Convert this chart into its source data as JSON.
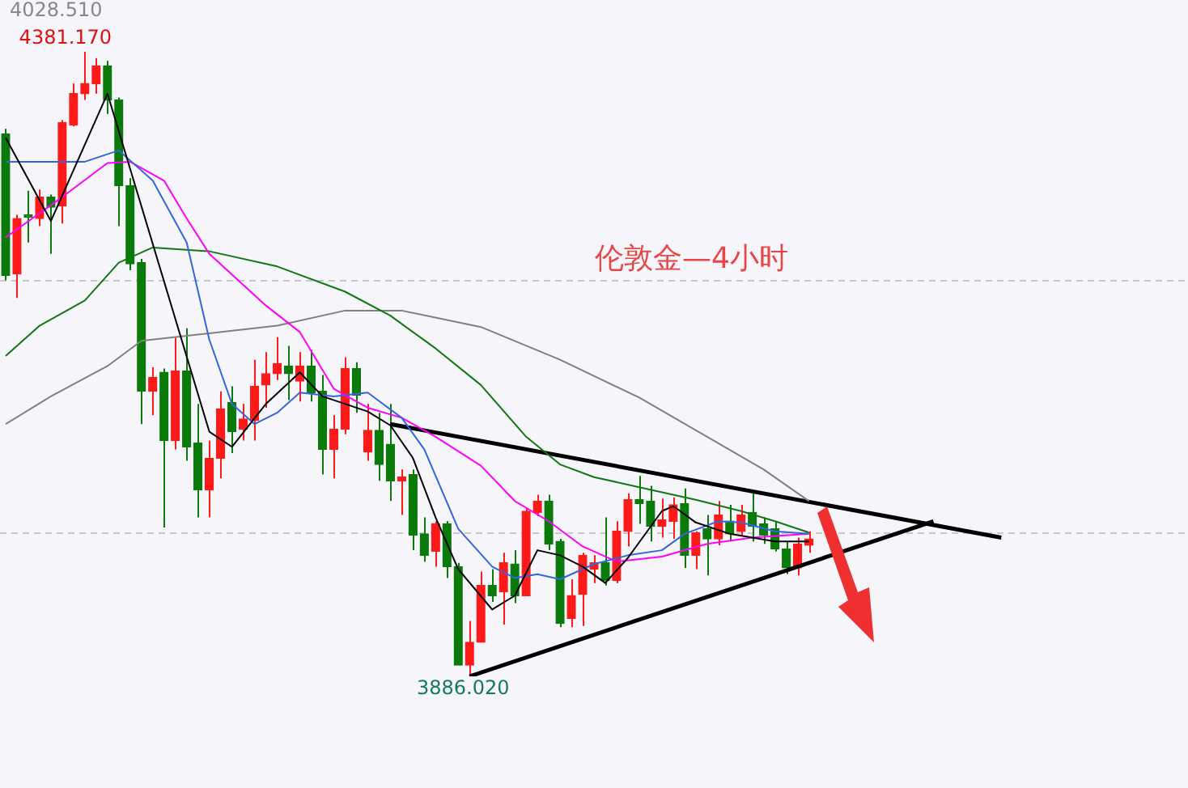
{
  "chart_data": {
    "type": "candlestick",
    "title": "伦敦金—4小时",
    "annotations": [
      "4028.510",
      "4381.170",
      "3886.020"
    ],
    "categories": [
      null,
      null,
      null,
      null,
      null,
      null,
      null,
      null,
      null,
      null,
      null,
      null,
      null,
      null,
      null,
      null,
      null,
      null,
      null,
      null,
      null,
      null,
      null,
      null,
      null,
      null,
      null,
      null,
      null,
      null,
      null,
      null,
      null,
      null,
      null,
      null,
      null,
      null,
      null,
      null,
      null,
      null,
      null,
      null,
      null,
      null,
      null,
      null,
      null,
      null,
      null,
      null,
      null,
      null,
      null,
      null,
      null,
      null,
      null,
      null,
      null,
      null,
      null,
      null,
      null,
      null,
      null,
      null,
      null,
      null,
      null,
      null,
      null,
      null,
      null,
      null,
      null,
      null,
      null,
      null,
      null,
      null,
      null,
      null,
      null,
      null,
      null,
      null,
      null,
      null,
      null,
      null,
      null,
      null,
      null,
      null,
      null,
      null,
      null,
      null,
      null,
      null,
      null,
      null,
      null
    ],
    "ohlc": [
      [
        4316,
        4320,
        4200,
        4204
      ],
      [
        4205,
        4252,
        4186,
        4249
      ],
      [
        4252,
        4271,
        4230,
        4250
      ],
      [
        4249,
        4272,
        4243,
        4266
      ],
      [
        4266,
        4268,
        4221,
        4258
      ],
      [
        4259,
        4327,
        4245,
        4325
      ],
      [
        4323,
        4356,
        4322,
        4348
      ],
      [
        4348,
        4381.17,
        4343,
        4356
      ],
      [
        4356,
        4376,
        4348,
        4370
      ],
      [
        4370,
        4374,
        4332,
        4343
      ],
      [
        4343,
        4345,
        4243,
        4275
      ],
      [
        4275,
        4281,
        4208,
        4213
      ],
      [
        4214,
        4217,
        4086,
        4112
      ],
      [
        4112,
        4131,
        4093,
        4123
      ],
      [
        4127,
        4130,
        4004,
        4073
      ],
      [
        4073,
        4155,
        4066,
        4128
      ],
      [
        4128,
        4162,
        4057,
        4068
      ],
      [
        4071,
        4102,
        4012,
        4034
      ],
      [
        4034,
        4073,
        4012,
        4059
      ],
      [
        4059,
        4112,
        4043,
        4098
      ],
      [
        4103,
        4116,
        4063,
        4080
      ],
      [
        4082,
        4102,
        4073,
        4090
      ],
      [
        4089,
        4137,
        4073,
        4116
      ],
      [
        4117,
        4143,
        4099,
        4126
      ],
      [
        4126,
        4155,
        4121,
        4134
      ],
      [
        4132,
        4148,
        4105,
        4126
      ],
      [
        4120,
        4143,
        4104,
        4132
      ],
      [
        4132,
        4145,
        4104,
        4111
      ],
      [
        4112,
        4125,
        4046,
        4066
      ],
      [
        4066,
        4093,
        4043,
        4082
      ],
      [
        4082,
        4139,
        4078,
        4130
      ],
      [
        4130,
        4135,
        4095,
        4109
      ],
      [
        4064,
        4102,
        4057,
        4081
      ],
      [
        4081,
        4095,
        4041,
        4054
      ],
      [
        4070,
        4102,
        4025,
        4041
      ],
      [
        4041,
        4050,
        4014,
        4044
      ],
      [
        4046,
        4050,
        3986,
        3998
      ],
      [
        3999,
        4012,
        3977,
        3982
      ],
      [
        3985,
        4009,
        3973,
        4007
      ],
      [
        4007,
        4009,
        3964,
        3973
      ],
      [
        3973,
        3976,
        3895,
        3895
      ],
      [
        3895,
        3930,
        3886.02,
        3913
      ],
      [
        3913,
        3969,
        3913,
        3958
      ],
      [
        3958,
        3971,
        3945,
        3950
      ],
      [
        3953,
        3984,
        3927,
        3976
      ],
      [
        3975,
        3986,
        3944,
        3950
      ],
      [
        3950,
        4019,
        3950,
        4017
      ],
      [
        4016,
        4030,
        4013,
        4025
      ],
      [
        4025,
        4030,
        3986,
        3991
      ],
      [
        3993,
        3995,
        3925,
        3928
      ],
      [
        3932,
        3963,
        3925,
        3950
      ],
      [
        3951,
        3984,
        3926,
        3982
      ],
      [
        3971,
        3982,
        3960,
        3976
      ],
      [
        3976,
        4012,
        3958,
        3962
      ],
      [
        3962,
        4009,
        3960,
        4001
      ],
      [
        4001,
        4031,
        3989,
        4026
      ],
      [
        4026,
        4045,
        4007,
        4023
      ],
      [
        4025,
        4037,
        3993,
        4005
      ],
      [
        4005,
        4027,
        3996,
        4010
      ],
      [
        4009,
        4028,
        3995,
        4022
      ],
      [
        4023,
        4035,
        3972,
        3982
      ],
      [
        3982,
        4001,
        3971,
        4000
      ],
      [
        4003,
        4014,
        3966,
        3995
      ],
      [
        3995,
        4025,
        3990,
        4014
      ],
      [
        4009,
        4022,
        3993,
        3999
      ],
      [
        4001,
        4022,
        3998,
        4014
      ],
      [
        4016,
        4031,
        3993,
        4005
      ],
      [
        4007,
        4012,
        3991,
        3998
      ],
      [
        4003,
        4009,
        3985,
        3987
      ],
      [
        3987,
        3993,
        3967,
        3972
      ],
      [
        3972,
        3996,
        3966,
        3991
      ],
      [
        3990,
        4001,
        3984,
        3995
      ],
      null,
      null,
      null,
      null,
      null,
      null,
      null,
      null,
      null,
      null,
      null,
      null,
      null,
      null,
      null,
      null,
      null,
      null,
      null,
      null,
      null,
      null,
      null,
      null,
      null,
      null,
      null,
      null,
      null,
      null,
      null,
      null,
      null
    ],
    "colors": [
      "#0a7a0a",
      "#ff1a1a",
      "#0a7a0a",
      "#ff1a1a",
      "#0a7a0a",
      "#ff1a1a",
      "#ff1a1a",
      "#ff1a1a",
      "#ff1a1a",
      "#0a7a0a",
      "#0a7a0a",
      "#0a7a0a",
      "#0a7a0a",
      "#ff1a1a",
      "#0a7a0a",
      "#ff1a1a",
      "#0a7a0a",
      "#0a7a0a",
      "#ff1a1a",
      "#ff1a1a",
      "#0a7a0a",
      "#ff1a1a",
      "#ff1a1a",
      "#ff1a1a",
      "#ff1a1a",
      "#0a7a0a",
      "#ff1a1a",
      "#0a7a0a",
      "#0a7a0a",
      "#ff1a1a",
      "#ff1a1a",
      "#0a7a0a",
      "#ff1a1a",
      "#0a7a0a",
      "#0a7a0a",
      "#ff1a1a",
      "#0a7a0a",
      "#0a7a0a",
      "#ff1a1a",
      "#0a7a0a",
      "#0a7a0a",
      "#ff1a1a",
      "#ff1a1a",
      "#0a7a0a",
      "#ff1a1a",
      "#0a7a0a",
      "#ff1a1a",
      "#ff1a1a",
      "#0a7a0a",
      "#0a7a0a",
      "#ff1a1a",
      "#ff1a1a",
      "#ff1a1a",
      "#0a7a0a",
      "#ff1a1a",
      "#ff1a1a",
      "#0a7a0a",
      "#0a7a0a",
      "#ff1a1a",
      "#ff1a1a",
      "#0a7a0a",
      "#ff1a1a",
      "#0a7a0a",
      "#ff1a1a",
      "#0a7a0a",
      "#ff1a1a",
      "#0a7a0a",
      "#0a7a0a",
      "#0a7a0a",
      "#0a7a0a",
      "#ff1a1a",
      "#ff1a1a",
      null,
      null,
      null,
      null,
      null,
      null,
      null,
      null,
      null,
      null,
      null,
      null,
      null,
      null,
      null,
      null,
      null,
      null,
      null,
      null,
      null,
      null,
      null,
      null,
      null,
      null,
      null,
      null,
      null,
      null,
      null,
      null,
      null
    ],
    "series": [
      {
        "type": "line",
        "color": "#000000",
        "values": [
          4313,
          null,
          null,
          null,
          4247,
          null,
          null,
          null,
          null,
          4348,
          null,
          null,
          null,
          null,
          null,
          null,
          null,
          null,
          4080,
          null,
          4068,
          null,
          null,
          4102,
          null,
          null,
          4127,
          null,
          4108,
          null,
          null,
          null,
          4096,
          null,
          4085,
          null,
          4059,
          null,
          4012,
          null,
          3971,
          null,
          null,
          3939,
          null,
          3950,
          null,
          3986,
          null,
          3982,
          null,
          3973,
          null,
          3960,
          null,
          3980,
          null,
          null,
          4017,
          4021,
          null,
          4008,
          null,
          null,
          3999,
          null,
          null,
          null,
          3993,
          null,
          null,
          3993,
          null,
          null,
          null,
          null,
          null,
          null,
          null,
          null,
          null,
          null,
          null,
          null,
          null,
          null,
          null,
          null,
          null,
          null,
          null,
          null,
          null,
          null,
          null,
          null,
          null,
          null,
          null,
          null,
          null,
          null,
          null,
          null,
          null
        ]
      },
      {
        "type": "line",
        "color": "#3366dd",
        "values": [
          4294,
          null,
          null,
          null,
          null,
          null,
          null,
          4294,
          null,
          null,
          4303,
          null,
          null,
          4279,
          null,
          null,
          4230,
          null,
          4153,
          null,
          4102,
          null,
          4086,
          null,
          4095,
          null,
          4111,
          null,
          null,
          4108,
          null,
          null,
          4111,
          null,
          null,
          4091,
          null,
          4066,
          null,
          null,
          4003,
          null,
          null,
          3973,
          null,
          3964,
          null,
          3967,
          null,
          3963,
          null,
          null,
          3975,
          null,
          null,
          3982,
          null,
          null,
          3986,
          null,
          3999,
          null,
          null,
          4009,
          null,
          4008,
          null,
          null,
          4001,
          null,
          null,
          3999,
          null,
          null,
          null,
          null,
          null,
          null,
          null,
          null,
          null,
          null,
          null,
          null,
          null,
          null,
          null,
          null,
          null,
          null,
          null,
          null,
          null,
          null,
          null,
          null,
          null,
          null,
          null,
          null,
          null,
          null,
          null,
          null,
          null
        ]
      },
      {
        "type": "line",
        "color": "#ff00ff",
        "values": [
          4234,
          null,
          null,
          null,
          null,
          4266,
          null,
          null,
          null,
          4293,
          null,
          4294,
          null,
          null,
          4279,
          null,
          4249,
          null,
          4221,
          null,
          null,
          null,
          null,
          4180,
          null,
          null,
          4159,
          null,
          null,
          4114,
          null,
          null,
          4099,
          null,
          null,
          4091,
          null,
          null,
          4076,
          null,
          null,
          null,
          4053,
          null,
          null,
          4025,
          null,
          null,
          4009,
          null,
          null,
          3989,
          null,
          null,
          3977,
          null,
          null,
          null,
          3981,
          null,
          null,
          null,
          3991,
          null,
          null,
          null,
          3996,
          null,
          null,
          null,
          null,
          3999,
          null,
          null,
          null,
          null,
          null,
          null,
          null,
          null,
          null,
          null,
          null,
          null,
          null,
          null,
          null,
          null,
          null,
          null,
          null,
          null,
          null,
          null,
          null,
          null,
          null,
          null,
          null,
          null,
          null,
          null,
          null,
          null,
          null
        ]
      },
      {
        "type": "line",
        "color": "#117711",
        "values": [
          4140,
          null,
          null,
          4164,
          null,
          null,
          null,
          4184,
          null,
          null,
          4214,
          null,
          null,
          4226,
          null,
          null,
          null,
          null,
          4223,
          null,
          null,
          null,
          null,
          null,
          4211,
          null,
          null,
          null,
          null,
          null,
          4191,
          null,
          null,
          null,
          4172,
          null,
          null,
          null,
          4146,
          null,
          null,
          null,
          4117,
          null,
          null,
          null,
          4076,
          null,
          null,
          4054,
          null,
          null,
          4044,
          null,
          null,
          null,
          4036,
          null,
          null,
          null,
          null,
          4026,
          null,
          null,
          null,
          4017,
          null,
          null,
          4009,
          null,
          null,
          4000,
          null,
          null,
          null,
          null,
          null,
          null,
          null,
          null,
          null,
          null,
          null,
          null,
          null,
          null,
          null,
          null,
          null,
          null,
          null,
          null,
          null,
          null,
          null,
          null,
          null,
          null,
          null,
          null,
          null,
          null,
          null,
          null,
          null
        ]
      },
      {
        "type": "line",
        "color": "#808080",
        "values": [
          4086,
          null,
          null,
          null,
          4108,
          null,
          null,
          null,
          null,
          4132,
          null,
          null,
          4152,
          null,
          null,
          null,
          null,
          null,
          4158,
          null,
          null,
          null,
          null,
          null,
          4164,
          null,
          null,
          null,
          null,
          null,
          4176,
          null,
          null,
          null,
          null,
          4176,
          null,
          null,
          null,
          null,
          null,
          null,
          4163,
          null,
          null,
          null,
          null,
          null,
          null,
          4137,
          null,
          null,
          null,
          null,
          null,
          null,
          4107,
          null,
          null,
          null,
          null,
          null,
          4076,
          null,
          null,
          null,
          null,
          4050,
          null,
          null,
          null,
          4025,
          null,
          null,
          null,
          null,
          null,
          null,
          null,
          null,
          null,
          null,
          null,
          null,
          null,
          null,
          null,
          null,
          null,
          null,
          null,
          null,
          null,
          null,
          null,
          null,
          null,
          null,
          null,
          null,
          null,
          null,
          null,
          null,
          null
        ]
      },
      {
        "type": "line",
        "color": "#000000",
        "values": [
          null,
          null,
          null,
          null,
          null,
          null,
          null,
          null,
          null,
          null,
          null,
          null,
          null,
          null,
          null,
          null,
          null,
          null,
          null,
          null,
          null,
          null,
          null,
          null,
          null,
          null,
          null,
          null,
          null,
          null,
          null,
          null,
          null,
          null,
          4086,
          null,
          null,
          null,
          null,
          null,
          null,
          null,
          null,
          null,
          null,
          null,
          null,
          null,
          null,
          null,
          null,
          null,
          null,
          null,
          null,
          null,
          null,
          null,
          null,
          null,
          null,
          null,
          null,
          null,
          null,
          null,
          null,
          null,
          null,
          null,
          null,
          null,
          null,
          null,
          null,
          null,
          null,
          null,
          null,
          null,
          null,
          null,
          null,
          null,
          null,
          null,
          null,
          null,
          3996,
          null,
          null,
          null,
          null,
          null,
          null,
          null,
          null,
          null,
          null,
          null,
          null,
          null,
          null,
          null,
          null
        ]
      },
      {
        "type": "line",
        "color": "#000000",
        "values": [
          null,
          null,
          null,
          null,
          null,
          null,
          null,
          null,
          null,
          null,
          null,
          null,
          null,
          null,
          null,
          null,
          null,
          null,
          null,
          null,
          null,
          null,
          null,
          null,
          null,
          null,
          null,
          null,
          null,
          null,
          null,
          null,
          null,
          null,
          null,
          null,
          null,
          null,
          null,
          null,
          null,
          3886,
          null,
          null,
          null,
          null,
          null,
          null,
          null,
          null,
          null,
          null,
          null,
          null,
          null,
          null,
          null,
          null,
          null,
          null,
          null,
          null,
          null,
          null,
          null,
          null,
          null,
          null,
          null,
          null,
          null,
          null,
          null,
          null,
          null,
          null,
          null,
          null,
          null,
          null,
          null,
          null,
          4009,
          null,
          null,
          null,
          null,
          null,
          null,
          null,
          null,
          null,
          null,
          null,
          null,
          null,
          null,
          null,
          null,
          null,
          null,
          null,
          null,
          null,
          null
        ]
      }
    ],
    "ref_lines": [
      {
        "axis": "y",
        "value": 4000,
        "line_style": "dashed",
        "color": "#c8c8c8"
      },
      {
        "axis": "y",
        "value": 4200,
        "line_style": "dashed",
        "color": "#c8c8c8"
      }
    ],
    "tick_labels": false,
    "legend": false
  }
}
